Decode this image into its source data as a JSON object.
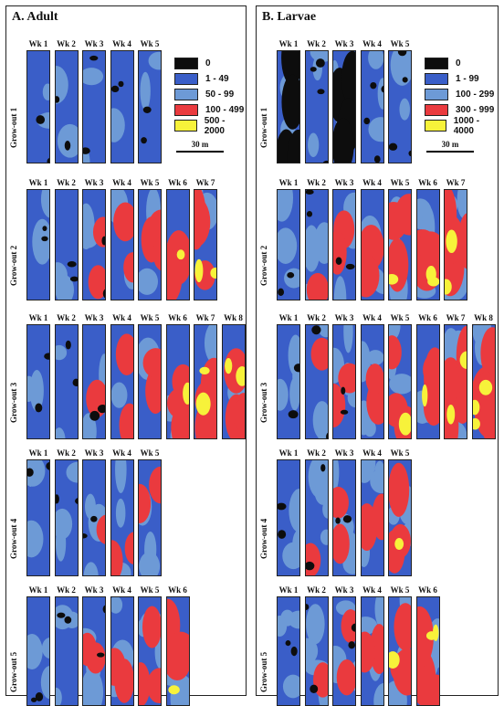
{
  "colors": {
    "c0": "#0d0d0d",
    "c1": "#3a5ec8",
    "c2": "#6d9ad6",
    "c3": "#ea3a3e",
    "c4": "#f7f23a"
  },
  "panels": [
    {
      "title": "A. Adult",
      "legend": [
        "0",
        "1 - 49",
        "50 - 99",
        "100 - 499",
        "500 - 2000"
      ],
      "scale_label": "30 m",
      "rows": [
        {
          "label": "Grow-out 1",
          "weeks": [
            "Wk 1",
            "Wk 2",
            "Wk 3",
            "Wk 4",
            "Wk 5"
          ]
        },
        {
          "label": "Grow-out 2",
          "weeks": [
            "Wk 1",
            "Wk 2",
            "Wk 3",
            "Wk 4",
            "Wk 5",
            "Wk 6",
            "Wk 7"
          ]
        },
        {
          "label": "Grow-out 3",
          "weeks": [
            "Wk 1",
            "Wk 2",
            "Wk 3",
            "Wk 4",
            "Wk 5",
            "Wk 6",
            "Wk 7",
            "Wk 8"
          ]
        },
        {
          "label": "Grow-out 4",
          "weeks": [
            "Wk 1",
            "Wk 2",
            "Wk 3",
            "Wk 4",
            "Wk 5"
          ]
        },
        {
          "label": "Grow-out 5",
          "weeks": [
            "Wk 1",
            "Wk 2",
            "Wk 3",
            "Wk 4",
            "Wk 5",
            "Wk 6"
          ]
        }
      ]
    },
    {
      "title": "B. Larvae",
      "legend": [
        "0",
        "1 - 99",
        "100 - 299",
        "300 - 999",
        "1000 - 4000"
      ],
      "scale_label": "30 m",
      "rows": [
        {
          "label": "Grow-out 1",
          "weeks": [
            "Wk 1",
            "Wk 2",
            "Wk 3",
            "Wk 4",
            "Wk 5"
          ]
        },
        {
          "label": "Grow-out 2",
          "weeks": [
            "Wk 1",
            "Wk 2",
            "Wk 3",
            "Wk 4",
            "Wk 5",
            "Wk 6",
            "Wk 7"
          ]
        },
        {
          "label": "Grow-out 3",
          "weeks": [
            "Wk 1",
            "Wk 2",
            "Wk 3",
            "Wk 4",
            "Wk 5",
            "Wk 6",
            "Wk 7",
            "Wk 8"
          ]
        },
        {
          "label": "Grow-out 4",
          "weeks": [
            "Wk 1",
            "Wk 2",
            "Wk 3",
            "Wk 4",
            "Wk 5"
          ]
        },
        {
          "label": "Grow-out 5",
          "weeks": [
            "Wk 1",
            "Wk 2",
            "Wk 3",
            "Wk 4",
            "Wk 5",
            "Wk 6"
          ]
        }
      ]
    }
  ]
}
